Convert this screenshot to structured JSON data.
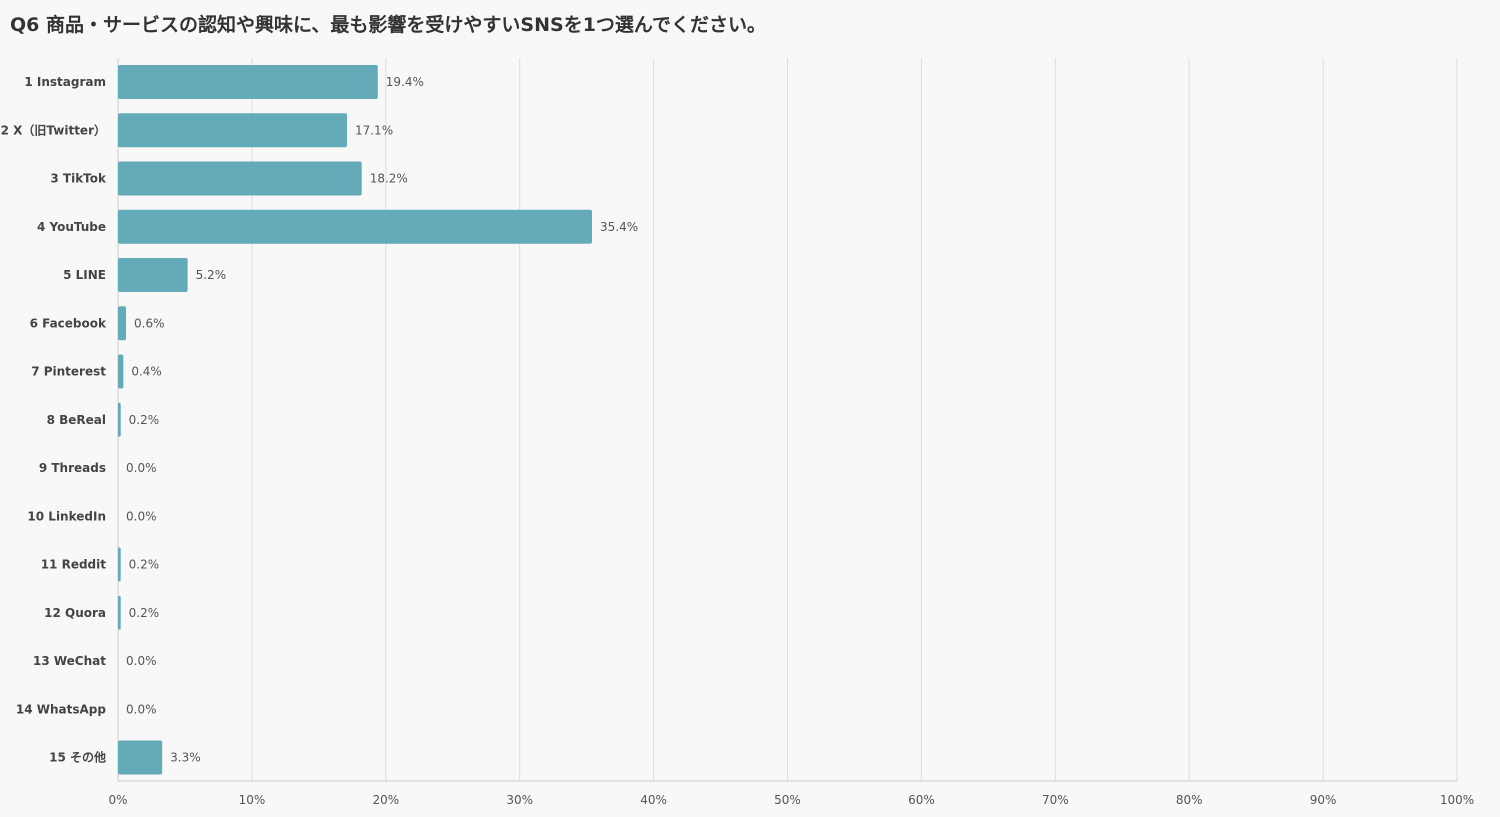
{
  "page": {
    "title": "Q6 商品・サービスの認知や興味に、最も影響を受けやすいSNSを1つ選んでください。"
  },
  "chart_data": {
    "type": "bar",
    "orientation": "horizontal",
    "title": "Q6 商品・サービスの認知や興味に、最も影響を受けやすいSNSを1つ選んでください。",
    "categories": [
      "1 Instagram",
      "2 X（旧Twitter）",
      "3 TikTok",
      "4 YouTube",
      "5 LINE",
      "6 Facebook",
      "7 Pinterest",
      "8 BeReal",
      "9 Threads",
      "10 LinkedIn",
      "11 Reddit",
      "12 Quora",
      "13 WeChat",
      "14 WhatsApp",
      "15 その他"
    ],
    "values": [
      19.4,
      17.1,
      18.2,
      35.4,
      5.2,
      0.6,
      0.4,
      0.2,
      0.0,
      0.0,
      0.2,
      0.2,
      0.0,
      0.0,
      3.3
    ],
    "value_labels": [
      "19.4%",
      "17.1%",
      "18.2%",
      "35.4%",
      "5.2%",
      "0.6%",
      "0.4%",
      "0.2%",
      "0.0%",
      "0.0%",
      "0.2%",
      "0.2%",
      "0.0%",
      "0.0%",
      "3.3%"
    ],
    "x_ticks": [
      "0%",
      "10%",
      "20%",
      "30%",
      "40%",
      "50%",
      "60%",
      "70%",
      "80%",
      "90%",
      "100%"
    ],
    "xlim": [
      0,
      100
    ],
    "grid": true,
    "bar_color": "#64abb9"
  }
}
